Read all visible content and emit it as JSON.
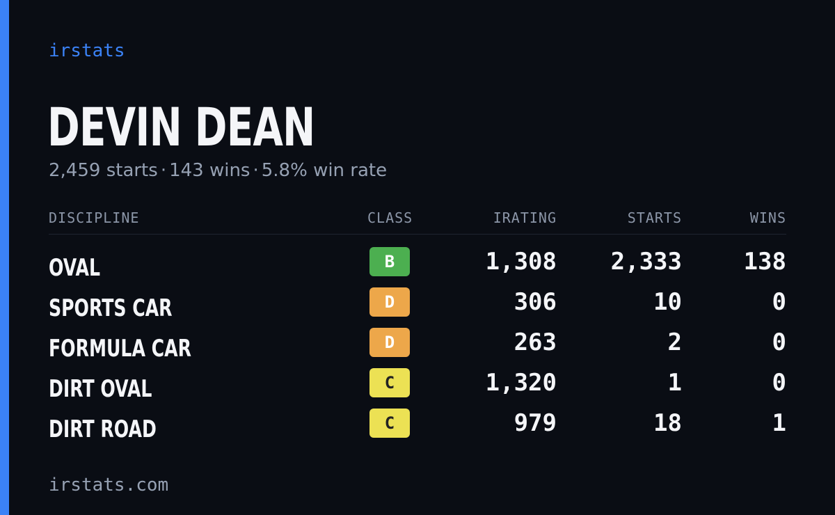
{
  "brand": "irstats",
  "driver": {
    "name": "DEVIN DEAN",
    "starts": "2,459 starts",
    "wins": "143 wins",
    "win_rate": "5.8% win rate",
    "separator": "·"
  },
  "table": {
    "headers": {
      "discipline": "DISCIPLINE",
      "class": "CLASS",
      "irating": "IRATING",
      "starts": "STARTS",
      "wins": "WINS"
    },
    "rows": [
      {
        "discipline": "OVAL",
        "class": "B",
        "irating": "1,308",
        "starts": "2,333",
        "wins": "138"
      },
      {
        "discipline": "SPORTS CAR",
        "class": "D",
        "irating": "306",
        "starts": "10",
        "wins": "0"
      },
      {
        "discipline": "FORMULA CAR",
        "class": "D",
        "irating": "263",
        "starts": "2",
        "wins": "0"
      },
      {
        "discipline": "DIRT OVAL",
        "class": "C",
        "irating": "1,320",
        "starts": "1",
        "wins": "0"
      },
      {
        "discipline": "DIRT ROAD",
        "class": "C",
        "irating": "979",
        "starts": "18",
        "wins": "1"
      }
    ]
  },
  "footer": "irstats.com",
  "colors": {
    "accent": "#3b82f6",
    "background": "#0a0d14",
    "class_b": "#4caf50",
    "class_c": "#ece154",
    "class_d": "#eda74a"
  }
}
